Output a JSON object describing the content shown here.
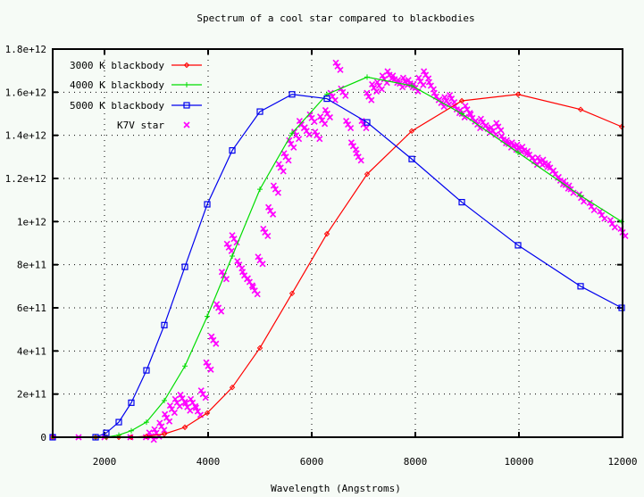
{
  "chart_data": {
    "type": "line",
    "title": "Spectrum of a cool star compared to blackbodies",
    "xlabel": "Wavelength (Angstroms)",
    "ylabel": "",
    "xlim": [
      1000,
      12000
    ],
    "ylim": [
      0,
      1800000000000.0
    ],
    "grid": true,
    "legend_position": "top-left",
    "x_ticks": [
      2000,
      4000,
      6000,
      8000,
      10000,
      12000
    ],
    "x_tick_labels": [
      "2000",
      "4000",
      "6000",
      "8000",
      "10000",
      "12000"
    ],
    "y_ticks": [
      0,
      200000000000.0,
      400000000000.0,
      600000000000.0,
      800000000000.0,
      1000000000000.0,
      1200000000000.0,
      1400000000000.0,
      1600000000000.0,
      1800000000000.0
    ],
    "y_tick_labels": [
      "0",
      "2e+11",
      "4e+11",
      "6e+11",
      "8e+11",
      "1e+12",
      "1.2e+12",
      "1.4e+12",
      "1.6e+12",
      "1.8e+12"
    ],
    "series": [
      {
        "name": "3000 K blackbody",
        "color": "#ff0000",
        "marker": "diamond",
        "style": "linespoints",
        "x": [
          1000,
          1828,
          2034,
          2276,
          2517,
          2810,
          3155,
          3552,
          3983,
          4466,
          5000,
          5621,
          6293,
          7069,
          7931,
          8897,
          9983,
          11190,
          11983
        ],
        "y": [
          0,
          0,
          0,
          0,
          0,
          4000000000.0,
          15000000000.0,
          46000000000.0,
          112000000000.0,
          231000000000.0,
          414000000000.0,
          667000000000.0,
          943000000000.0,
          1220000000000.0,
          1420000000000.0,
          1560000000000.0,
          1590000000000.0,
          1520000000000.0,
          1440000000000.0
        ]
      },
      {
        "name": "4000 K blackbody",
        "color": "#00dd00",
        "marker": "plus",
        "style": "linespoints",
        "x": [
          1000,
          1828,
          2034,
          2276,
          2517,
          2810,
          3155,
          3552,
          3983,
          4466,
          5000,
          5621,
          6293,
          7069,
          7931,
          8897,
          9983,
          11190,
          11983
        ],
        "y": [
          0,
          0,
          0,
          10000000000.0,
          30000000000.0,
          70000000000.0,
          170000000000.0,
          330000000000.0,
          560000000000.0,
          840000000000.0,
          1150000000000.0,
          1410000000000.0,
          1590000000000.0,
          1670000000000.0,
          1630000000000.0,
          1500000000000.0,
          1320000000000.0,
          1120000000000.0,
          1000000000000.0
        ]
      },
      {
        "name": "5000 K blackbody",
        "color": "#0000ee",
        "marker": "square",
        "style": "linespoints",
        "x": [
          1000,
          1828,
          2034,
          2276,
          2517,
          2810,
          3155,
          3552,
          3983,
          4466,
          5000,
          5621,
          6293,
          7069,
          7931,
          8897,
          9983,
          11190,
          11983
        ],
        "y": [
          0,
          0,
          20000000000.0,
          70000000000.0,
          160000000000.0,
          310000000000.0,
          520000000000.0,
          790000000000.0,
          1080000000000.0,
          1330000000000.0,
          1510000000000.0,
          1590000000000.0,
          1570000000000.0,
          1460000000000.0,
          1290000000000.0,
          1090000000000.0,
          890000000000.0,
          700000000000.0,
          600000000000.0
        ]
      },
      {
        "name": "K7V star",
        "color": "#ff00ff",
        "marker": "x",
        "style": "points",
        "x": [
          1000,
          1500,
          2000,
          2500,
          2800,
          2900,
          3000,
          3100,
          3200,
          3300,
          3400,
          3500,
          3600,
          3700,
          3800,
          3900,
          4000,
          4100,
          4200,
          4300,
          4400,
          4500,
          4600,
          4700,
          4800,
          4900,
          5000,
          5100,
          5200,
          5300,
          5400,
          5500,
          5600,
          5700,
          5800,
          5900,
          6000,
          6100,
          6200,
          6300,
          6400,
          6500,
          6600,
          6700,
          6800,
          6900,
          7000,
          7100,
          7200,
          7300,
          7400,
          7500,
          7600,
          7700,
          7800,
          7900,
          8000,
          8100,
          8200,
          8300,
          8400,
          8500,
          8600,
          8700,
          8800,
          8900,
          9000,
          9100,
          9200,
          9300,
          9400,
          9500,
          9600,
          9700,
          9800,
          9900,
          10000,
          10100,
          10200,
          10300,
          10400,
          10500,
          10600,
          10700,
          10800,
          10900,
          11000,
          11200,
          11400,
          11600,
          11800,
          12000
        ],
        "y": [
          0,
          0,
          0,
          0,
          0,
          5000000000.0,
          20000000000.0,
          50000000000.0,
          90000000000.0,
          130000000000.0,
          160000000000.0,
          180000000000.0,
          140000000000.0,
          160000000000.0,
          120000000000.0,
          200000000000.0,
          330000000000.0,
          450000000000.0,
          600000000000.0,
          750000000000.0,
          880000000000.0,
          920000000000.0,
          800000000000.0,
          750000000000.0,
          720000000000.0,
          680000000000.0,
          820000000000.0,
          950000000000.0,
          1050000000000.0,
          1150000000000.0,
          1250000000000.0,
          1300000000000.0,
          1360000000000.0,
          1400000000000.0,
          1450000000000.0,
          1420000000000.0,
          1480000000000.0,
          1400000000000.0,
          1470000000000.0,
          1500000000000.0,
          1580000000000.0,
          1720000000000.0,
          1600000000000.0,
          1450000000000.0,
          1350000000000.0,
          1300000000000.0,
          1450000000000.0,
          1580000000000.0,
          1620000000000.0,
          1630000000000.0,
          1660000000000.0,
          1680000000000.0,
          1660000000000.0,
          1640000000000.0,
          1650000000000.0,
          1640000000000.0,
          1620000000000.0,
          1650000000000.0,
          1680000000000.0,
          1630000000000.0,
          1580000000000.0,
          1550000000000.0,
          1560000000000.0,
          1570000000000.0,
          1520000000000.0,
          1500000000000.0,
          1520000000000.0,
          1480000000000.0,
          1450000000000.0,
          1460000000000.0,
          1430000000000.0,
          1420000000000.0,
          1440000000000.0,
          1380000000000.0,
          1360000000000.0,
          1350000000000.0,
          1340000000000.0,
          1330000000000.0,
          1310000000000.0,
          1280000000000.0,
          1280000000000.0,
          1270000000000.0,
          1250000000000.0,
          1220000000000.0,
          1190000000000.0,
          1170000000000.0,
          1150000000000.0,
          1110000000000.0,
          1070000000000.0,
          1030000000000.0,
          990000000000.0,
          950000000000.0
        ]
      }
    ]
  }
}
